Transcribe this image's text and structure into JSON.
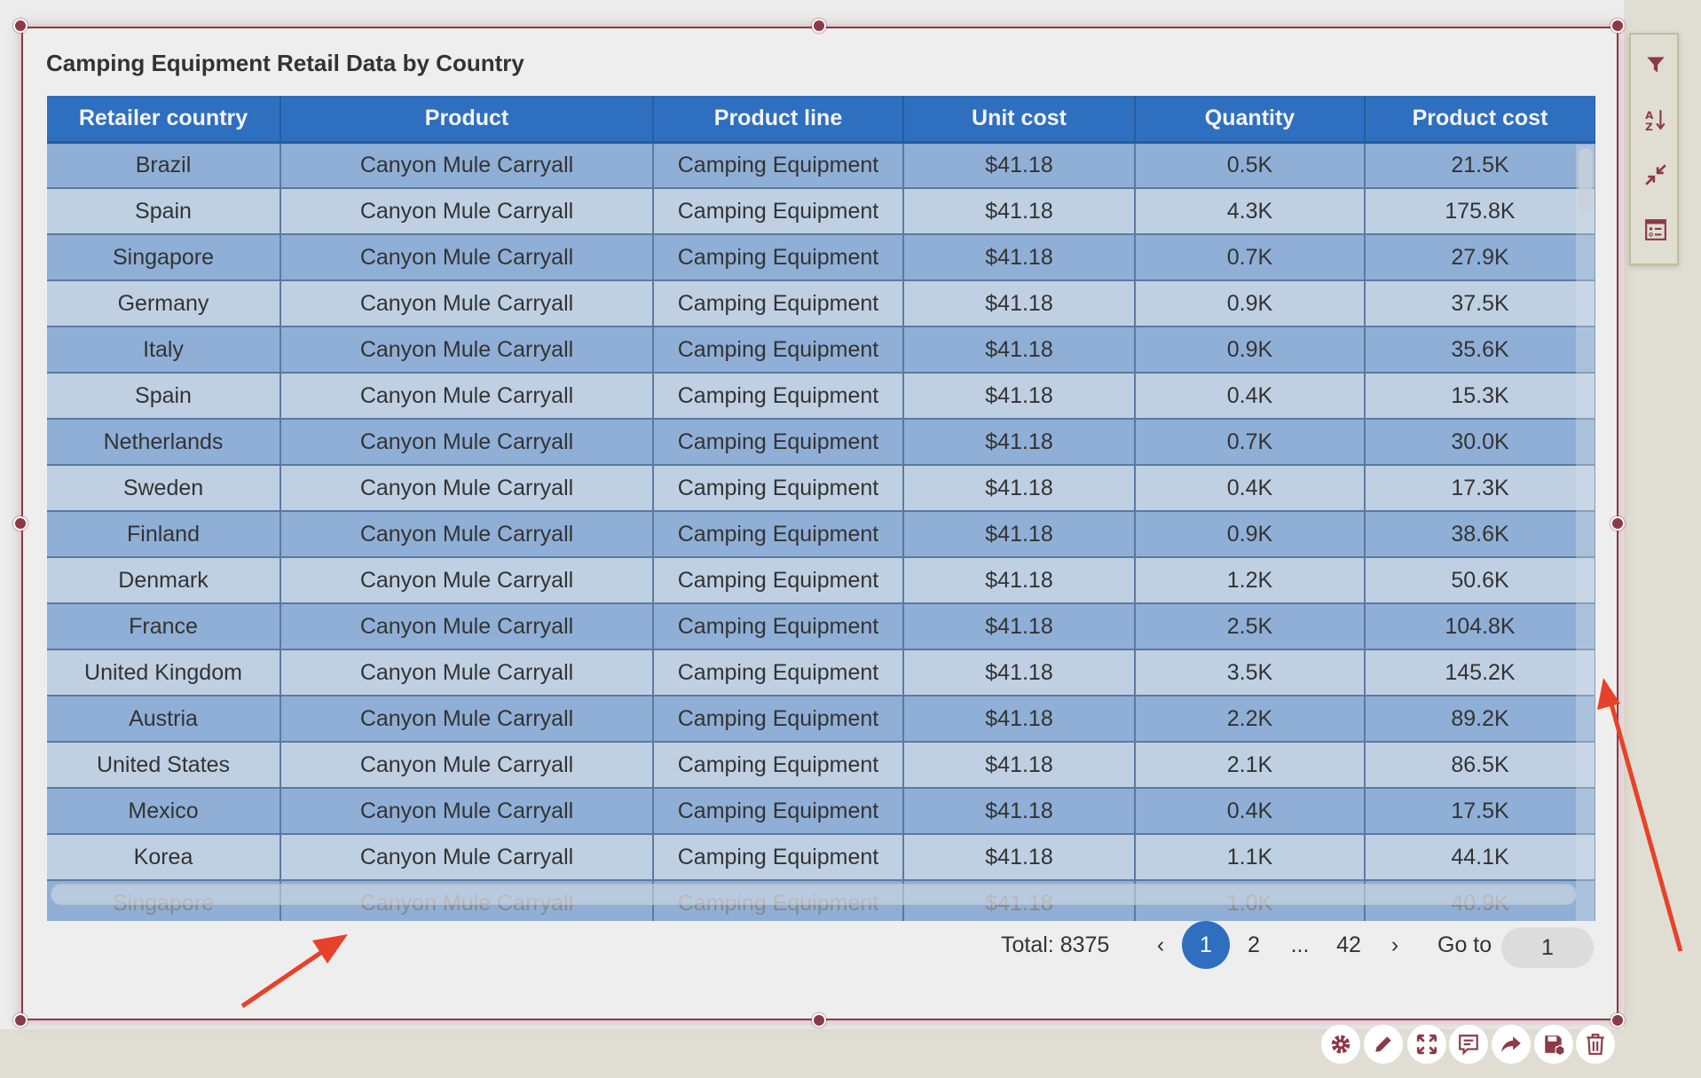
{
  "title": "Camping Equipment Retail Data by Country",
  "columns": [
    "Retailer country",
    "Product",
    "Product line",
    "Unit cost",
    "Quantity",
    "Product cost"
  ],
  "rows": [
    [
      "Brazil",
      "Canyon Mule Carryall",
      "Camping Equipment",
      "$41.18",
      "0.5K",
      "21.5K"
    ],
    [
      "Spain",
      "Canyon Mule Carryall",
      "Camping Equipment",
      "$41.18",
      "4.3K",
      "175.8K"
    ],
    [
      "Singapore",
      "Canyon Mule Carryall",
      "Camping Equipment",
      "$41.18",
      "0.7K",
      "27.9K"
    ],
    [
      "Germany",
      "Canyon Mule Carryall",
      "Camping Equipment",
      "$41.18",
      "0.9K",
      "37.5K"
    ],
    [
      "Italy",
      "Canyon Mule Carryall",
      "Camping Equipment",
      "$41.18",
      "0.9K",
      "35.6K"
    ],
    [
      "Spain",
      "Canyon Mule Carryall",
      "Camping Equipment",
      "$41.18",
      "0.4K",
      "15.3K"
    ],
    [
      "Netherlands",
      "Canyon Mule Carryall",
      "Camping Equipment",
      "$41.18",
      "0.7K",
      "30.0K"
    ],
    [
      "Sweden",
      "Canyon Mule Carryall",
      "Camping Equipment",
      "$41.18",
      "0.4K",
      "17.3K"
    ],
    [
      "Finland",
      "Canyon Mule Carryall",
      "Camping Equipment",
      "$41.18",
      "0.9K",
      "38.6K"
    ],
    [
      "Denmark",
      "Canyon Mule Carryall",
      "Camping Equipment",
      "$41.18",
      "1.2K",
      "50.6K"
    ],
    [
      "France",
      "Canyon Mule Carryall",
      "Camping Equipment",
      "$41.18",
      "2.5K",
      "104.8K"
    ],
    [
      "United Kingdom",
      "Canyon Mule Carryall",
      "Camping Equipment",
      "$41.18",
      "3.5K",
      "145.2K"
    ],
    [
      "Austria",
      "Canyon Mule Carryall",
      "Camping Equipment",
      "$41.18",
      "2.2K",
      "89.2K"
    ],
    [
      "United States",
      "Canyon Mule Carryall",
      "Camping Equipment",
      "$41.18",
      "2.1K",
      "86.5K"
    ],
    [
      "Mexico",
      "Canyon Mule Carryall",
      "Camping Equipment",
      "$41.18",
      "0.4K",
      "17.5K"
    ],
    [
      "Korea",
      "Canyon Mule Carryall",
      "Camping Equipment",
      "$41.18",
      "1.1K",
      "44.1K"
    ],
    [
      "Singapore",
      "Canyon Mule Carryall",
      "Camping Equipment",
      "$41.18",
      "1.0K",
      "40.9K"
    ]
  ],
  "pagination": {
    "total_label": "Total: 8375",
    "prev": "‹",
    "pages": [
      "1",
      "2",
      "...",
      "42"
    ],
    "current": "1",
    "next": "›",
    "goto_label": "Go to",
    "goto_value": "1"
  },
  "colors": {
    "accent": "#2f6fbf",
    "border": "#8b3a47",
    "row_dark": "#8fafd6",
    "row_light": "#bfd0e3",
    "annotation": "#e8412a"
  }
}
